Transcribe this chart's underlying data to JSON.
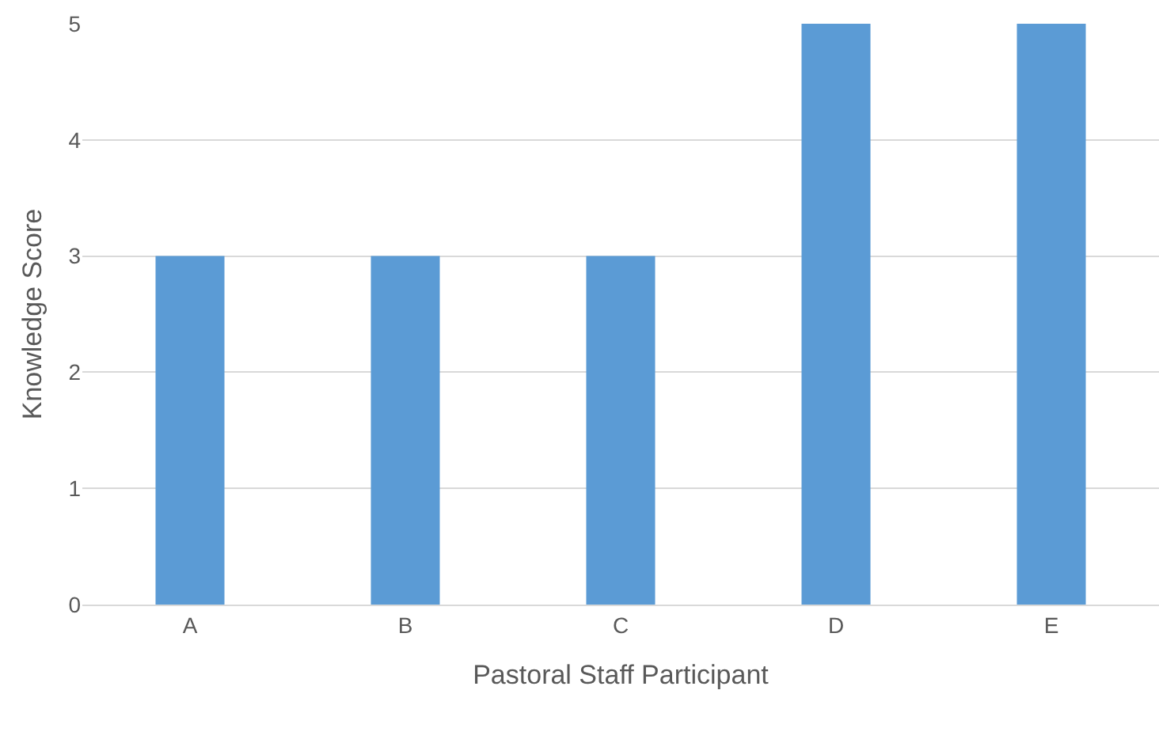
{
  "chart_data": {
    "type": "bar",
    "xlabel": "Pastoral Staff Participant",
    "ylabel": "Knowledge Score",
    "categories": [
      "A",
      "B",
      "C",
      "D",
      "E"
    ],
    "values": [
      3,
      3,
      3,
      5,
      5
    ],
    "color": "#5b9bd5",
    "ylim": [
      0,
      5
    ],
    "yticks": [
      0,
      1,
      2,
      3,
      4,
      5
    ],
    "grid": "y"
  }
}
